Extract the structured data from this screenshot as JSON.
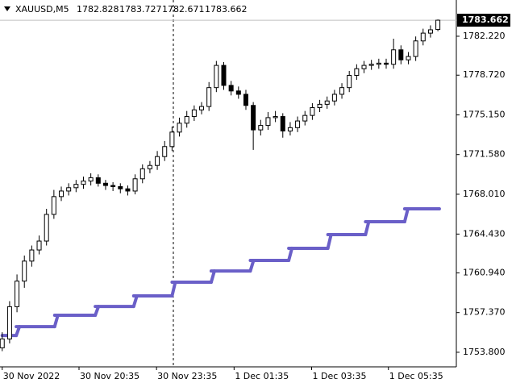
{
  "chart_data": {
    "type": "candlestick",
    "symbol": "XAUUSD,M5",
    "up_color": "#ffffff",
    "down_color": "#000000",
    "wick_color": "#000000",
    "open": [
      1754.2,
      1755.0,
      1757.9,
      1760.2,
      1762.0,
      1763.0,
      1763.8,
      1766.2,
      1767.8,
      1768.3,
      1768.6,
      1768.9,
      1769.2,
      1769.5,
      1769.0,
      1768.8,
      1768.7,
      1768.5,
      1768.3,
      1769.4,
      1770.3,
      1770.6,
      1771.4,
      1772.3,
      1773.6,
      1774.4,
      1775.0,
      1775.6,
      1775.9,
      1777.6,
      1779.6,
      1777.8,
      1777.3,
      1777.0,
      1776.0,
      1773.8,
      1774.2,
      1774.9,
      1775.0,
      1773.7,
      1774.0,
      1774.6,
      1775.1,
      1775.8,
      1776.1,
      1776.4,
      1777.0,
      1777.6,
      1778.7,
      1779.3,
      1779.6,
      1779.7,
      1779.8,
      1779.7,
      1781.0,
      1780.1,
      1780.4,
      1781.8,
      1782.5,
      1782.828
    ],
    "high": [
      1755.6,
      1758.4,
      1760.8,
      1762.5,
      1763.4,
      1764.3,
      1766.7,
      1768.4,
      1768.7,
      1769.0,
      1769.3,
      1769.6,
      1769.9,
      1769.8,
      1769.3,
      1769.1,
      1769.0,
      1768.8,
      1769.8,
      1770.7,
      1771.0,
      1771.9,
      1772.8,
      1774.1,
      1774.9,
      1775.5,
      1776.0,
      1776.3,
      1778.1,
      1780.0,
      1779.9,
      1778.2,
      1777.7,
      1777.4,
      1776.3,
      1774.7,
      1775.4,
      1775.5,
      1775.3,
      1774.5,
      1775.0,
      1775.5,
      1776.2,
      1776.5,
      1776.8,
      1777.4,
      1778.0,
      1779.1,
      1779.7,
      1780.0,
      1780.1,
      1780.2,
      1780.2,
      1782.0,
      1781.4,
      1780.8,
      1782.2,
      1782.9,
      1783.2,
      1783.727
    ],
    "low": [
      1753.9,
      1754.6,
      1757.4,
      1759.6,
      1761.5,
      1762.6,
      1763.4,
      1765.8,
      1767.4,
      1767.9,
      1768.2,
      1768.5,
      1768.8,
      1768.7,
      1768.4,
      1768.3,
      1768.1,
      1767.9,
      1768.0,
      1769.0,
      1769.9,
      1770.2,
      1771.0,
      1771.9,
      1773.2,
      1774.0,
      1774.6,
      1775.2,
      1775.5,
      1777.2,
      1777.4,
      1776.9,
      1776.6,
      1775.6,
      1772.0,
      1773.3,
      1773.8,
      1774.5,
      1773.1,
      1773.3,
      1773.6,
      1774.2,
      1774.7,
      1775.4,
      1775.7,
      1776.0,
      1776.6,
      1777.2,
      1778.3,
      1778.9,
      1779.2,
      1779.3,
      1779.3,
      1779.3,
      1779.7,
      1779.7,
      1780.0,
      1781.4,
      1782.1,
      1782.671
    ],
    "close": [
      1755.0,
      1757.9,
      1760.2,
      1762.0,
      1763.0,
      1763.8,
      1766.2,
      1767.8,
      1768.3,
      1768.6,
      1768.9,
      1769.2,
      1769.5,
      1769.0,
      1768.8,
      1768.7,
      1768.5,
      1768.3,
      1769.4,
      1770.3,
      1770.6,
      1771.4,
      1772.3,
      1773.6,
      1774.4,
      1775.0,
      1775.6,
      1775.9,
      1777.6,
      1779.6,
      1777.8,
      1777.3,
      1777.0,
      1776.0,
      1773.8,
      1774.2,
      1774.9,
      1775.0,
      1773.7,
      1774.0,
      1774.6,
      1775.1,
      1775.8,
      1776.1,
      1776.4,
      1777.0,
      1777.6,
      1778.7,
      1779.3,
      1779.6,
      1779.7,
      1779.8,
      1779.7,
      1781.0,
      1780.1,
      1780.4,
      1781.8,
      1782.5,
      1782.8,
      1783.662
    ],
    "indicator": {
      "color": "#6a5fc8",
      "values": [
        1755.31,
        1756.11,
        1757.13,
        1757.92,
        1758.87,
        1760.1,
        1761.11,
        1762.06,
        1763.15,
        1764.38,
        1765.54,
        1766.7
      ],
      "x_start": [
        0,
        1.9,
        7.1,
        12.6,
        17.8,
        23.0,
        28.3,
        33.6,
        38.8,
        44.1,
        49.2,
        54.5
      ],
      "x_end": [
        1.9,
        7.1,
        12.6,
        17.8,
        23.0,
        28.3,
        33.6,
        38.8,
        44.1,
        49.2,
        54.5,
        59.2
      ]
    },
    "xlim": [
      -0.3,
      61.5
    ],
    "xticks": [
      {
        "value": 0,
        "label": "30 Nov 2022"
      },
      {
        "value": 10.4,
        "label": "30 Nov 20:35"
      },
      {
        "value": 20.9,
        "label": "30 Nov 23:35"
      },
      {
        "value": 31.4,
        "label": "1 Dec 01:35"
      },
      {
        "value": 41.9,
        "label": "1 Dec 03:35"
      },
      {
        "value": 52.3,
        "label": "1 Dec 05:35"
      }
    ],
    "ylim": [
      1752.49,
      1785.48
    ],
    "yticks": [
      {
        "value": 1753.8,
        "label": "1753.800"
      },
      {
        "value": 1757.37,
        "label": "1757.370"
      },
      {
        "value": 1760.94,
        "label": "1760.940"
      },
      {
        "value": 1764.43,
        "label": "1764.430"
      },
      {
        "value": 1768.01,
        "label": "1768.010"
      },
      {
        "value": 1771.58,
        "label": "1771.580"
      },
      {
        "value": 1775.15,
        "label": "1775.150"
      },
      {
        "value": 1778.72,
        "label": "1778.720"
      },
      {
        "value": 1782.22,
        "label": "1782.220"
      }
    ]
  }
}
